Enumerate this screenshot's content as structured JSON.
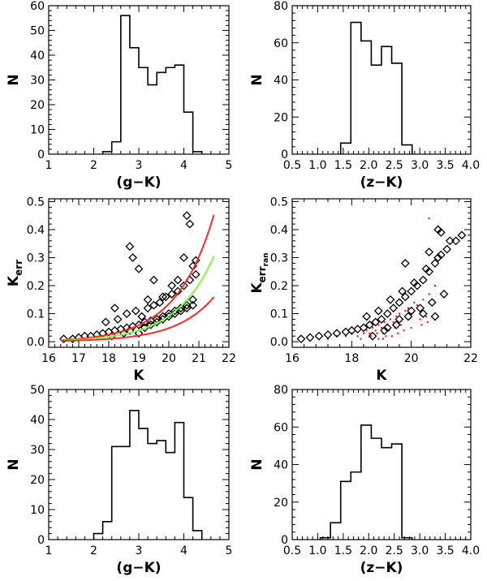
{
  "chart_data": [
    {
      "id": "p1",
      "type": "histogram",
      "xlabel": "(g−K)",
      "ylabel": "N",
      "xlim": [
        1,
        5
      ],
      "ylim": [
        0,
        60
      ],
      "xticks": [
        1,
        2,
        3,
        4,
        5
      ],
      "xtick_labels": [
        "1",
        "2",
        "3",
        "4",
        "5"
      ],
      "yticks": [
        0,
        10,
        20,
        30,
        40,
        50,
        60
      ],
      "ytick_labels": [
        "0",
        "10",
        "20",
        "30",
        "40",
        "50",
        "60"
      ],
      "bin_edges": [
        2.2,
        2.4,
        2.6,
        2.8,
        3.0,
        3.2,
        3.4,
        3.6,
        3.8,
        4.0,
        4.2,
        4.4
      ],
      "values": [
        1,
        5,
        56,
        43,
        35,
        28,
        33,
        35,
        36,
        17,
        1
      ]
    },
    {
      "id": "p2",
      "type": "histogram",
      "xlabel": "(z−K)",
      "ylabel": "N",
      "xlim": [
        0.5,
        4.0
      ],
      "ylim": [
        0,
        80
      ],
      "xticks": [
        0.5,
        1.0,
        1.5,
        2.0,
        2.5,
        3.0,
        3.5,
        4.0
      ],
      "xtick_labels": [
        "0.5",
        "1.0",
        "1.5",
        "2.0",
        "2.5",
        "3.0",
        "3.5",
        "4.0"
      ],
      "yticks": [
        0,
        20,
        40,
        60,
        80
      ],
      "ytick_labels": [
        "0",
        "20",
        "40",
        "60",
        "80"
      ],
      "bin_edges": [
        1.45,
        1.65,
        1.85,
        2.05,
        2.25,
        2.45,
        2.65,
        2.85
      ],
      "values": [
        6,
        71,
        61,
        48,
        58,
        49,
        5
      ]
    },
    {
      "id": "p3",
      "type": "scatter",
      "xlabel": "K",
      "ylabel": "K",
      "ylabel_sub": "err",
      "xlim": [
        16,
        22
      ],
      "ylim": [
        -0.02,
        0.51
      ],
      "xticks": [
        16,
        17,
        18,
        19,
        20,
        21,
        22
      ],
      "xtick_labels": [
        "16",
        "17",
        "18",
        "19",
        "20",
        "21",
        "22"
      ],
      "yticks": [
        0.0,
        0.1,
        0.2,
        0.3,
        0.4,
        0.5
      ],
      "ytick_labels": [
        "0.0",
        "0.1",
        "0.2",
        "0.3",
        "0.4",
        "0.5"
      ],
      "marker": "diamond",
      "x": [
        16.5,
        16.8,
        17.0,
        17.2,
        17.4,
        17.6,
        17.8,
        18.0,
        18.2,
        18.4,
        18.6,
        18.8,
        19.0,
        19.2,
        19.4,
        19.6,
        19.8,
        20.0,
        20.2,
        20.4,
        20.6,
        20.8,
        17.9,
        18.3,
        18.6,
        18.9,
        19.1,
        19.3,
        19.5,
        19.7,
        19.9,
        20.1,
        20.3,
        20.5,
        20.7,
        20.9,
        18.1,
        18.5,
        18.7,
        19.0,
        19.2,
        19.4,
        19.6,
        19.8,
        20.0,
        20.2,
        20.4,
        20.6,
        20.8,
        18.7,
        18.8,
        19.0,
        19.5,
        20.6,
        20.7,
        20.8,
        20.5,
        20.3,
        20.9,
        18.2,
        19.8,
        20.1,
        19.3
      ],
      "y": [
        0.01,
        0.01,
        0.015,
        0.02,
        0.02,
        0.025,
        0.03,
        0.035,
        0.04,
        0.045,
        0.05,
        0.055,
        0.06,
        0.07,
        0.075,
        0.08,
        0.09,
        0.1,
        0.11,
        0.12,
        0.13,
        0.15,
        0.07,
        0.08,
        0.1,
        0.11,
        0.09,
        0.12,
        0.13,
        0.14,
        0.16,
        0.17,
        0.18,
        0.2,
        0.22,
        0.24,
        0.02,
        0.03,
        0.04,
        0.03,
        0.05,
        0.06,
        0.07,
        0.08,
        0.09,
        0.1,
        0.11,
        0.12,
        0.13,
        0.34,
        0.3,
        0.26,
        0.22,
        0.45,
        0.42,
        0.27,
        0.3,
        0.22,
        0.29,
        0.12,
        0.16,
        0.2,
        0.15
      ],
      "curves": [
        {
          "color": "#ff2a2a",
          "x_range": [
            16.4,
            21.5
          ],
          "a": 0.0077,
          "b": 0.0053,
          "k0": 16.4
        },
        {
          "color": "#7dff3a",
          "x_range": [
            16.4,
            21.5
          ],
          "a": 0.0052,
          "b": 0.0041,
          "k0": 16.4
        },
        {
          "color": "#ff2a2a",
          "x_range": [
            16.4,
            21.5
          ],
          "a": 0.0027,
          "b": 0.0029,
          "k0": 16.4
        }
      ]
    },
    {
      "id": "p4",
      "type": "scatter",
      "xlabel": "K",
      "ylabel": "K",
      "ylabel_sub": "err",
      "ylabel_subsub": "ran",
      "xlim": [
        16,
        22
      ],
      "ylim": [
        -0.02,
        0.51
      ],
      "xticks": [
        16,
        18,
        20,
        22
      ],
      "xtick_labels": [
        "16",
        "18",
        "20",
        "22"
      ],
      "yticks": [
        0.0,
        0.1,
        0.2,
        0.3,
        0.4,
        0.5
      ],
      "ytick_labels": [
        "0.0",
        "0.1",
        "0.2",
        "0.3",
        "0.4",
        "0.5"
      ],
      "marker": "diamond",
      "secondary_color": "#ff0000",
      "x": [
        16.3,
        16.6,
        16.9,
        17.2,
        17.5,
        17.8,
        18.0,
        18.2,
        18.4,
        18.6,
        18.8,
        19.0,
        19.2,
        19.4,
        19.6,
        19.8,
        20.0,
        20.2,
        20.4,
        20.6,
        20.8,
        21.0,
        21.2,
        21.5,
        21.7,
        18.5,
        18.9,
        19.3,
        19.7,
        20.1,
        20.5,
        20.9,
        21.3,
        19.1,
        19.5,
        19.9,
        20.3,
        20.7,
        21.1,
        18.7,
        19.2,
        19.6,
        20.0,
        20.4,
        20.8,
        20.9,
        21.0,
        20.6,
        19.8
      ],
      "y": [
        0.01,
        0.015,
        0.02,
        0.025,
        0.03,
        0.035,
        0.04,
        0.045,
        0.05,
        0.06,
        0.07,
        0.08,
        0.1,
        0.12,
        0.14,
        0.16,
        0.18,
        0.2,
        0.22,
        0.25,
        0.28,
        0.31,
        0.33,
        0.36,
        0.38,
        0.09,
        0.11,
        0.15,
        0.18,
        0.21,
        0.26,
        0.3,
        0.36,
        0.04,
        0.06,
        0.09,
        0.12,
        0.14,
        0.17,
        0.02,
        0.05,
        0.08,
        0.11,
        0.1,
        0.09,
        0.4,
        0.39,
        0.32,
        0.28
      ],
      "secondary_x": [
        17.5,
        17.8,
        18.0,
        18.2,
        18.4,
        18.5,
        18.6,
        18.7,
        18.8,
        18.9,
        19.0,
        19.1,
        19.2,
        19.3,
        19.4,
        19.5,
        19.6,
        19.7,
        19.8,
        19.9,
        20.0,
        20.1,
        20.2,
        20.4,
        20.6,
        20.8,
        19.05,
        19.25,
        19.45,
        19.65,
        18.65,
        18.85,
        20.3,
        20.5,
        17.2,
        18.3,
        19.15,
        19.35,
        19.55,
        19.75,
        18.9,
        19.05,
        20.0,
        20.35,
        20.55,
        20.6
      ],
      "secondary_y": [
        0.02,
        0.02,
        0.03,
        0.02,
        0.03,
        0.04,
        0.03,
        0.05,
        0.04,
        0.06,
        0.05,
        0.07,
        0.06,
        0.08,
        0.07,
        0.09,
        0.1,
        0.08,
        0.11,
        0.12,
        0.1,
        0.14,
        0.13,
        0.15,
        0.17,
        0.2,
        0.03,
        0.04,
        0.05,
        0.06,
        0.02,
        0.03,
        0.08,
        0.09,
        0.01,
        0.01,
        0.02,
        0.02,
        0.03,
        0.04,
        0.01,
        0.01,
        0.05,
        0.06,
        0.07,
        0.44
      ]
    },
    {
      "id": "p5",
      "type": "histogram",
      "xlabel": "(g−K)",
      "ylabel": "N",
      "xlim": [
        1,
        5
      ],
      "ylim": [
        0,
        50
      ],
      "xticks": [
        1,
        2,
        3,
        4,
        5
      ],
      "xtick_labels": [
        "1",
        "2",
        "3",
        "4",
        "5"
      ],
      "yticks": [
        0,
        10,
        20,
        30,
        40,
        50
      ],
      "ytick_labels": [
        "0",
        "10",
        "20",
        "30",
        "40",
        "50"
      ],
      "bin_edges": [
        2.0,
        2.2,
        2.4,
        2.6,
        2.8,
        3.0,
        3.2,
        3.4,
        3.6,
        3.8,
        4.0,
        4.2,
        4.4
      ],
      "values": [
        2,
        6,
        31,
        31,
        43,
        37,
        32,
        33,
        29,
        39,
        14,
        3
      ]
    },
    {
      "id": "p6",
      "type": "histogram",
      "xlabel": "(z−K)",
      "ylabel": "N",
      "xlim": [
        0.5,
        4.0
      ],
      "ylim": [
        0,
        80
      ],
      "xticks": [
        0.5,
        1.0,
        1.5,
        2.0,
        2.5,
        3.0,
        3.5,
        4.0
      ],
      "xtick_labels": [
        "0.5",
        "1.0",
        "1.5",
        "2.0",
        "2.5",
        "3.0",
        "3.5",
        "4.0"
      ],
      "yticks": [
        0,
        20,
        40,
        60,
        80
      ],
      "ytick_labels": [
        "0",
        "20",
        "40",
        "60",
        "80"
      ],
      "bin_edges": [
        1.05,
        1.25,
        1.45,
        1.65,
        1.85,
        2.05,
        2.25,
        2.45,
        2.65,
        2.85
      ],
      "values": [
        1,
        9,
        31,
        36,
        61,
        54,
        49,
        51,
        1
      ]
    }
  ]
}
